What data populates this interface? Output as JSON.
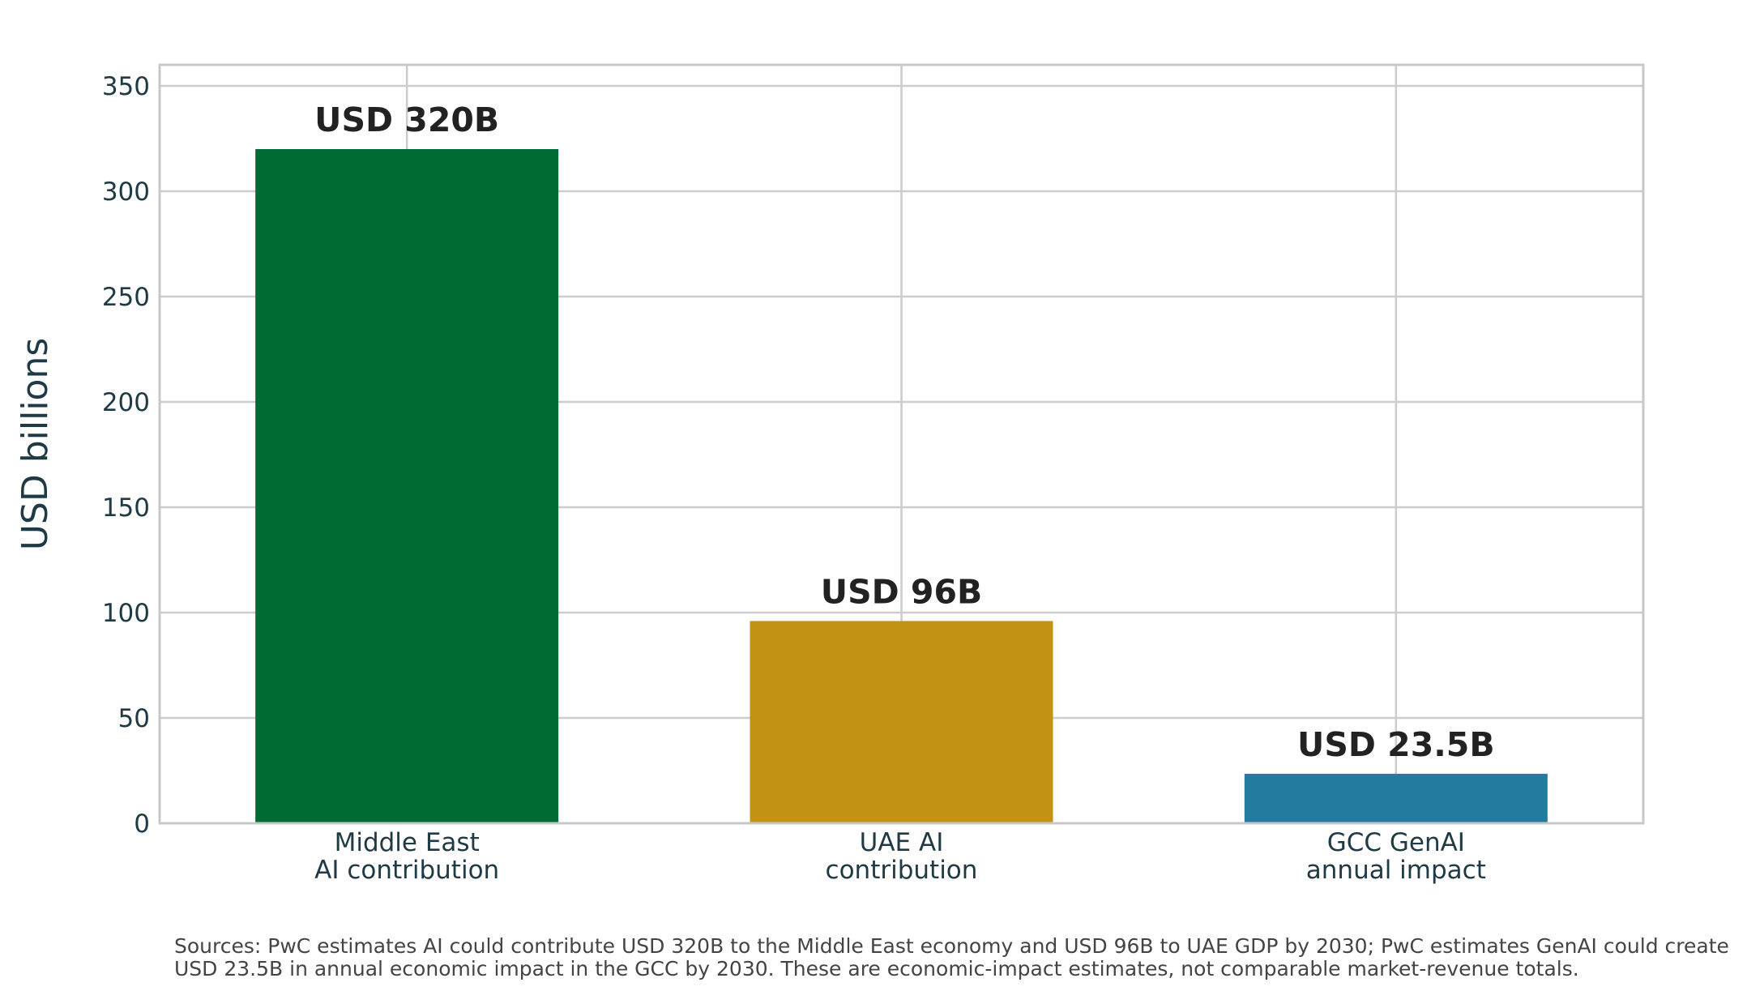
{
  "chart_data": {
    "type": "bar",
    "categories": [
      [
        "Middle East",
        "AI contribution"
      ],
      [
        "UAE AI",
        "contribution"
      ],
      [
        "GCC GenAI",
        "annual impact"
      ]
    ],
    "values": [
      320,
      96,
      23.5
    ],
    "value_labels": [
      "USD 320B",
      "USD 96B",
      "USD 23.5B"
    ],
    "colors": [
      "#006B35",
      "#C49213",
      "#237B9F"
    ],
    "ylabel": "USD billions",
    "ylim": [
      0,
      360
    ],
    "yticks": [
      0,
      50,
      100,
      150,
      200,
      250,
      300,
      350
    ],
    "grid": true,
    "legend": "none"
  },
  "sources": {
    "line1": "Sources: PwC estimates AI could contribute USD 320B to the Middle East economy and USD 96B to UAE GDP by 2030; PwC estimates GenAI could create",
    "line2": "USD 23.5B in annual economic impact in the GCC by 2030. These are economic-impact estimates, not comparable market-revenue totals."
  }
}
